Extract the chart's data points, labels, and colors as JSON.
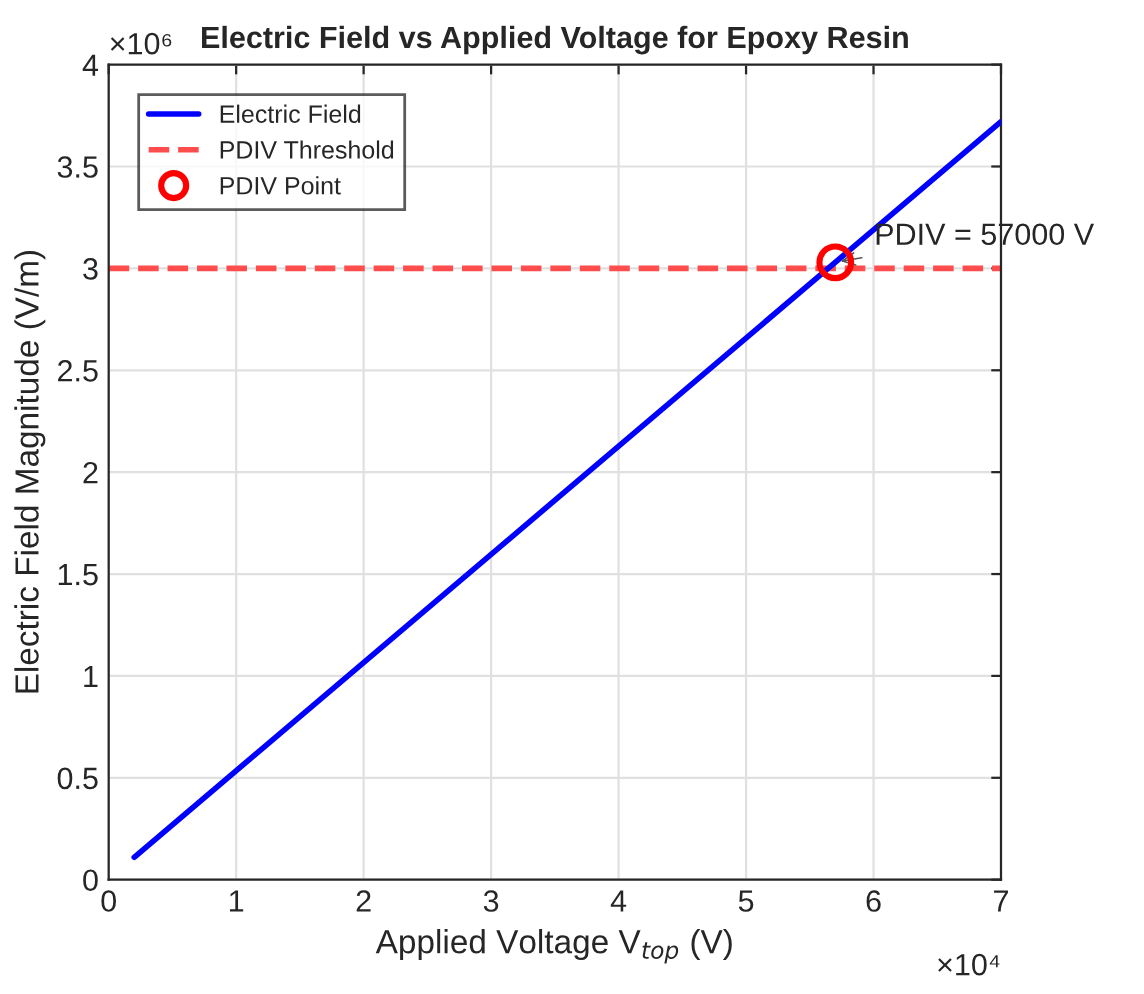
{
  "chart_data": {
    "type": "line",
    "title": "Electric Field vs Applied Voltage for Epoxy Resin",
    "xlabel": "Applied Voltage V$_{top}$ (V)",
    "ylabel": "Electric Field Magnitude (V/m)",
    "series": [
      {
        "name": "Electric Field",
        "color": "#0000ff",
        "x": [
          0.2,
          7
        ],
        "values": [
          0.11,
          3.72
        ],
        "marker": "none",
        "line_style": "solid"
      },
      {
        "name": "PDIV Point",
        "type": "scatter",
        "color": "#ff0000",
        "x": [
          5.7
        ],
        "values": [
          3.03
        ],
        "marker": "circle"
      }
    ],
    "ref_lines": [
      {
        "axis": "y",
        "value": 3,
        "label": "PDIV Threshold",
        "color": "#ff4d4d",
        "line_style": "dashed"
      }
    ],
    "annotations": [
      {
        "text": "PDIV = 57000 V",
        "x": 5.7,
        "y": 3.03
      },
      "×10⁴",
      "×10⁶"
    ],
    "xlim": [
      0,
      7
    ],
    "xticks": [
      0,
      1,
      2,
      3,
      4,
      5,
      6,
      7
    ],
    "ylim": [
      0,
      4
    ],
    "yticks": [
      0,
      0.5,
      1,
      1.5,
      2,
      2.5,
      3,
      3.5,
      4
    ],
    "grid": true,
    "legend": "top left"
  }
}
